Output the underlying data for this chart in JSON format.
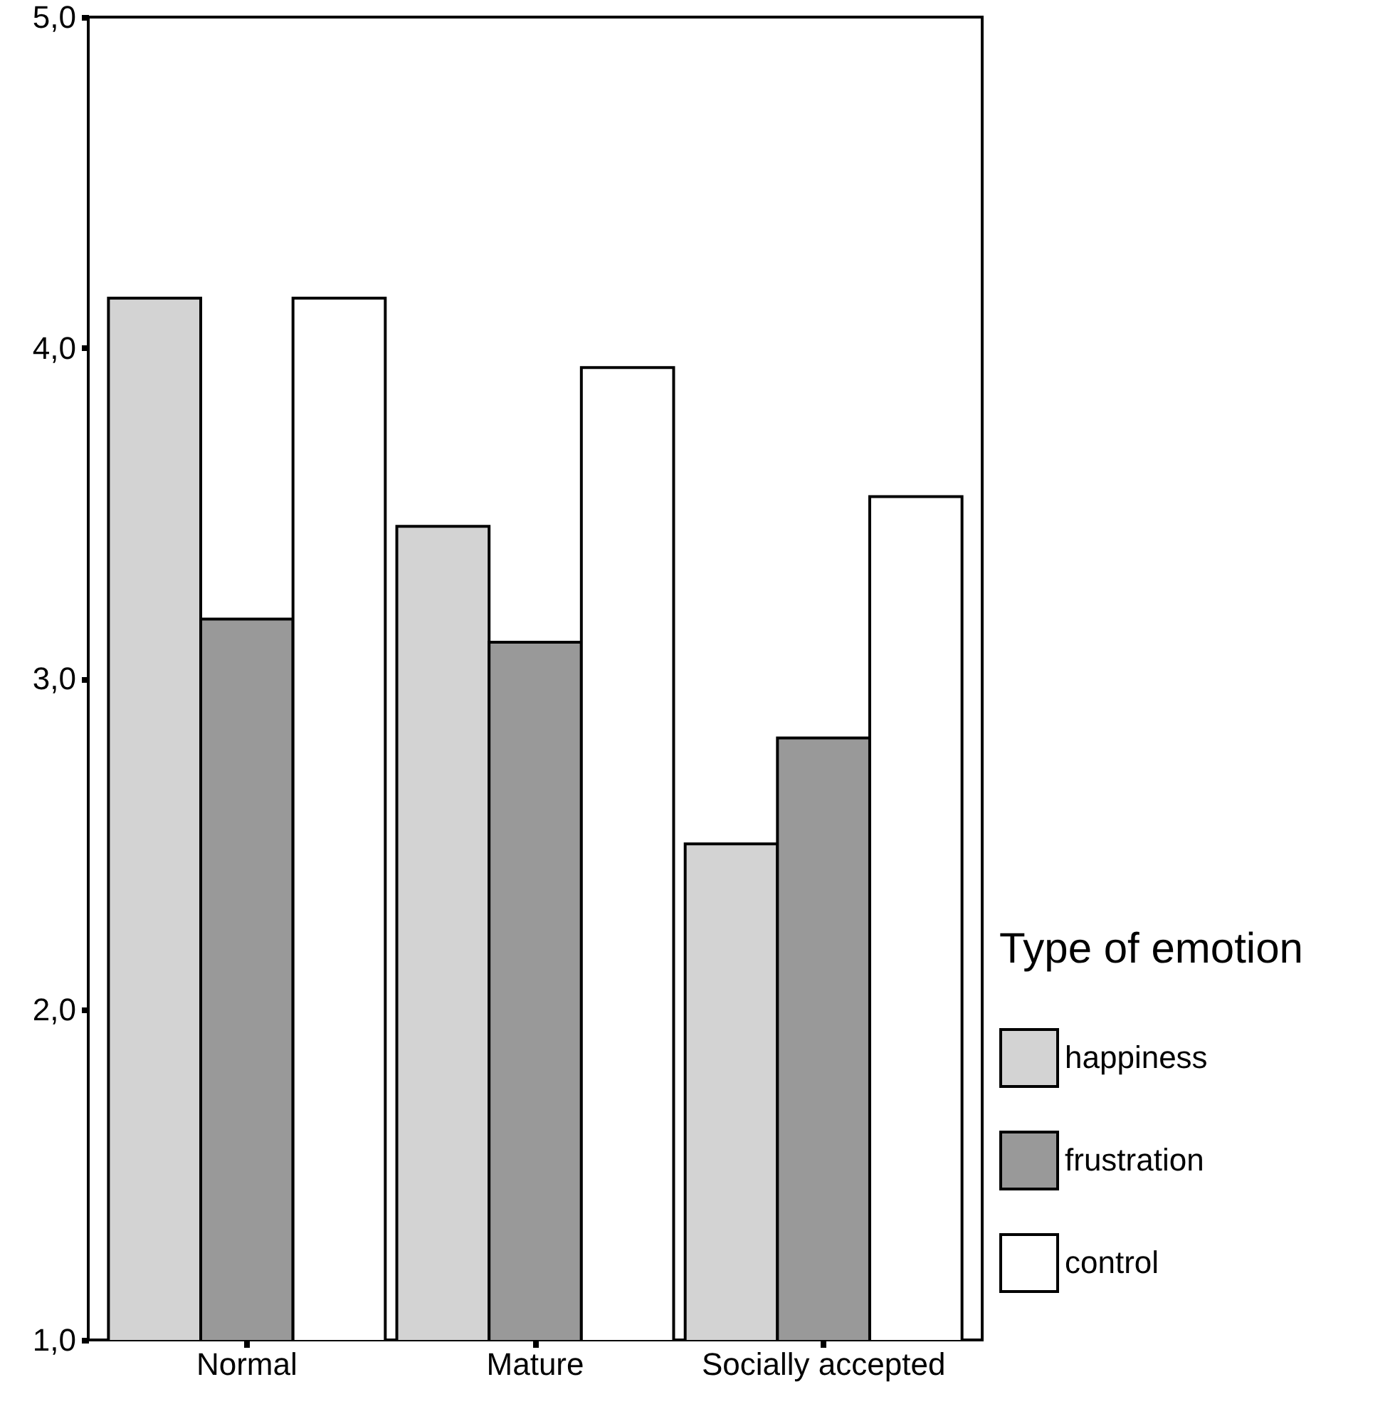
{
  "chart_data": {
    "type": "bar",
    "categories": [
      "Normal",
      "Mature",
      "Socially accepted"
    ],
    "series": [
      {
        "name": "happiness",
        "color": "#d3d3d3",
        "values": [
          4.15,
          3.46,
          2.5
        ]
      },
      {
        "name": "frustration",
        "color": "#999999",
        "values": [
          3.18,
          3.11,
          2.82
        ]
      },
      {
        "name": "control",
        "color": "#ffffff",
        "values": [
          4.15,
          3.94,
          3.55
        ]
      }
    ],
    "ylim": [
      1,
      5
    ],
    "yticks": [
      {
        "value": 1,
        "label": "1,0"
      },
      {
        "value": 2,
        "label": "2,0"
      },
      {
        "value": 3,
        "label": "3,0"
      },
      {
        "value": 4,
        "label": "4,0"
      },
      {
        "value": 5,
        "label": "5,0"
      }
    ],
    "legend_title": "Type of emotion",
    "legend": "right",
    "grid": false
  }
}
